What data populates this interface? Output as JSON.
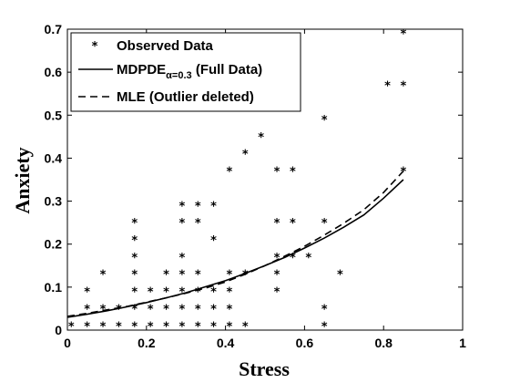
{
  "chart_data": {
    "type": "scatter",
    "xlabel": "Stress",
    "ylabel": "Anxiety",
    "xlim": [
      0,
      1
    ],
    "ylim": [
      0,
      0.7
    ],
    "xticks": [
      0,
      0.2,
      0.4,
      0.6,
      0.8,
      1
    ],
    "yticks": [
      0,
      0.1,
      0.2,
      0.3,
      0.4,
      0.5,
      0.6,
      0.7
    ],
    "xtick_labels": [
      "0",
      "0.2",
      "0.4",
      "0.6",
      "0.8",
      "1"
    ],
    "ytick_labels": [
      "0",
      "0.1",
      "0.2",
      "0.3",
      "0.4",
      "0.5",
      "0.6",
      "0.7"
    ],
    "grid": false,
    "legend_position": "top-left",
    "series": [
      {
        "name": "Observed Data",
        "style": "markers",
        "marker": "*",
        "points": [
          [
            0.01,
            0.01
          ],
          [
            0.05,
            0.01
          ],
          [
            0.05,
            0.05
          ],
          [
            0.05,
            0.09
          ],
          [
            0.09,
            0.01
          ],
          [
            0.09,
            0.05
          ],
          [
            0.09,
            0.13
          ],
          [
            0.13,
            0.01
          ],
          [
            0.13,
            0.05
          ],
          [
            0.17,
            0.01
          ],
          [
            0.17,
            0.05
          ],
          [
            0.17,
            0.09
          ],
          [
            0.17,
            0.13
          ],
          [
            0.17,
            0.17
          ],
          [
            0.17,
            0.21
          ],
          [
            0.17,
            0.25
          ],
          [
            0.21,
            0.01
          ],
          [
            0.21,
            0.05
          ],
          [
            0.21,
            0.09
          ],
          [
            0.25,
            0.01
          ],
          [
            0.25,
            0.05
          ],
          [
            0.25,
            0.09
          ],
          [
            0.25,
            0.13
          ],
          [
            0.29,
            0.01
          ],
          [
            0.29,
            0.05
          ],
          [
            0.29,
            0.09
          ],
          [
            0.29,
            0.13
          ],
          [
            0.29,
            0.17
          ],
          [
            0.29,
            0.25
          ],
          [
            0.29,
            0.29
          ],
          [
            0.33,
            0.01
          ],
          [
            0.33,
            0.05
          ],
          [
            0.33,
            0.09
          ],
          [
            0.33,
            0.13
          ],
          [
            0.33,
            0.25
          ],
          [
            0.33,
            0.29
          ],
          [
            0.37,
            0.01
          ],
          [
            0.37,
            0.05
          ],
          [
            0.37,
            0.09
          ],
          [
            0.37,
            0.21
          ],
          [
            0.37,
            0.29
          ],
          [
            0.41,
            0.01
          ],
          [
            0.41,
            0.05
          ],
          [
            0.41,
            0.09
          ],
          [
            0.41,
            0.13
          ],
          [
            0.41,
            0.37
          ],
          [
            0.45,
            0.01
          ],
          [
            0.45,
            0.13
          ],
          [
            0.45,
            0.41
          ],
          [
            0.49,
            0.45
          ],
          [
            0.53,
            0.09
          ],
          [
            0.53,
            0.13
          ],
          [
            0.53,
            0.17
          ],
          [
            0.53,
            0.25
          ],
          [
            0.53,
            0.37
          ],
          [
            0.57,
            0.17
          ],
          [
            0.57,
            0.25
          ],
          [
            0.57,
            0.37
          ],
          [
            0.61,
            0.17
          ],
          [
            0.65,
            0.01
          ],
          [
            0.65,
            0.05
          ],
          [
            0.65,
            0.25
          ],
          [
            0.65,
            0.49
          ],
          [
            0.69,
            0.13
          ],
          [
            0.81,
            0.57
          ],
          [
            0.85,
            0.37
          ],
          [
            0.85,
            0.57
          ],
          [
            0.85,
            0.69
          ]
        ]
      },
      {
        "name": "MDPDE",
        "name_subscript": "α=0.3",
        "name_suffix": " (Full Data)",
        "style": "solid",
        "x": [
          0.0,
          0.05,
          0.1,
          0.15,
          0.2,
          0.25,
          0.3,
          0.35,
          0.4,
          0.45,
          0.5,
          0.55,
          0.6,
          0.65,
          0.7,
          0.75,
          0.8,
          0.85
        ],
        "y": [
          0.03,
          0.037,
          0.045,
          0.054,
          0.064,
          0.075,
          0.087,
          0.101,
          0.115,
          0.132,
          0.15,
          0.169,
          0.191,
          0.214,
          0.24,
          0.268,
          0.307,
          0.35
        ]
      },
      {
        "name": "MLE (Outlier deleted)",
        "style": "dashed",
        "x": [
          0.0,
          0.05,
          0.1,
          0.15,
          0.2,
          0.25,
          0.3,
          0.35,
          0.4,
          0.45,
          0.5,
          0.55,
          0.6,
          0.65,
          0.7,
          0.75,
          0.8,
          0.85
        ],
        "y": [
          0.032,
          0.039,
          0.047,
          0.055,
          0.065,
          0.075,
          0.086,
          0.098,
          0.112,
          0.13,
          0.15,
          0.172,
          0.195,
          0.221,
          0.249,
          0.28,
          0.32,
          0.37
        ]
      }
    ]
  }
}
